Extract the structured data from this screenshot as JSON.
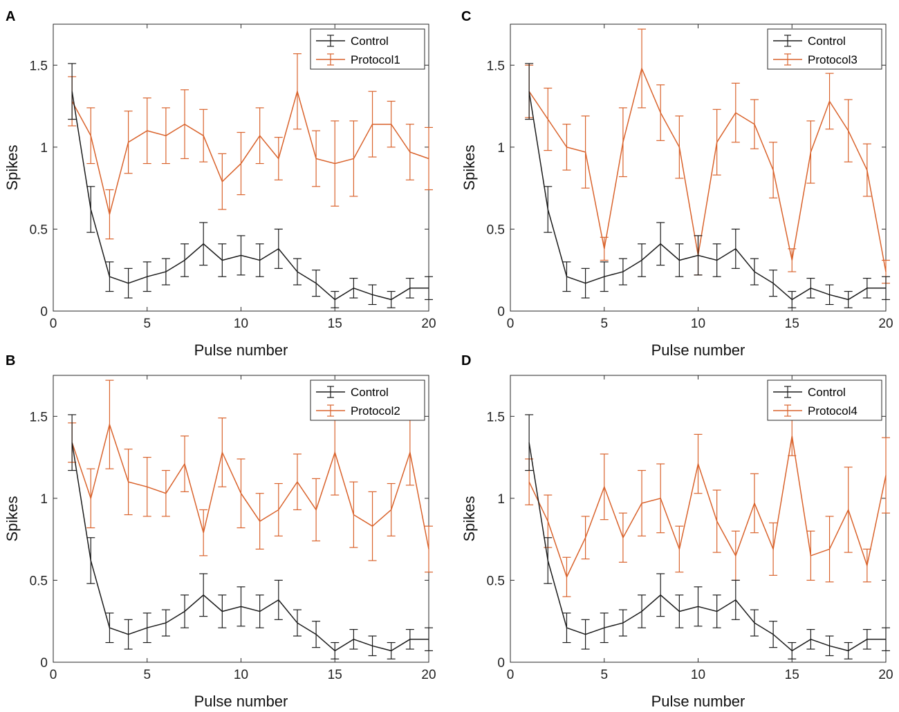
{
  "colors": {
    "control": "#1a1a1a",
    "protocol": "#d9622b"
  },
  "chart_data": [
    {
      "panel": "A",
      "type": "line",
      "xlabel": "Pulse number",
      "ylabel": "Spikes",
      "xlim": [
        0,
        20
      ],
      "ylim": [
        0,
        1.75
      ],
      "xticks": [
        0,
        5,
        10,
        15,
        20
      ],
      "yticks": [
        0,
        0.5,
        1,
        1.5
      ],
      "ytick_labels": [
        "0",
        "0.5",
        "1",
        "1.5"
      ],
      "legend": "top-right",
      "x": [
        1,
        2,
        3,
        4,
        5,
        6,
        7,
        8,
        9,
        10,
        11,
        12,
        13,
        14,
        15,
        16,
        17,
        18,
        19,
        20
      ],
      "series": [
        {
          "name": "Control",
          "values": [
            1.34,
            0.62,
            0.21,
            0.17,
            0.21,
            0.24,
            0.31,
            0.41,
            0.31,
            0.34,
            0.31,
            0.38,
            0.24,
            0.17,
            0.07,
            0.14,
            0.1,
            0.07,
            0.14,
            0.14
          ],
          "errors": [
            0.17,
            0.14,
            0.09,
            0.09,
            0.09,
            0.08,
            0.1,
            0.13,
            0.1,
            0.12,
            0.1,
            0.12,
            0.08,
            0.08,
            0.05,
            0.06,
            0.06,
            0.05,
            0.06,
            0.07
          ]
        },
        {
          "name": "Protocol1",
          "values": [
            1.28,
            1.07,
            0.59,
            1.03,
            1.1,
            1.07,
            1.14,
            1.07,
            0.79,
            0.9,
            1.07,
            0.93,
            1.34,
            0.93,
            0.9,
            0.93,
            1.14,
            1.14,
            0.97,
            0.93
          ],
          "errors": [
            0.15,
            0.17,
            0.15,
            0.19,
            0.2,
            0.17,
            0.21,
            0.16,
            0.17,
            0.19,
            0.17,
            0.13,
            0.23,
            0.17,
            0.26,
            0.23,
            0.2,
            0.14,
            0.17,
            0.19
          ]
        }
      ]
    },
    {
      "panel": "B",
      "type": "line",
      "xlabel": "Pulse number",
      "ylabel": "Spikes",
      "xlim": [
        0,
        20
      ],
      "ylim": [
        0,
        1.75
      ],
      "xticks": [
        0,
        5,
        10,
        15,
        20
      ],
      "yticks": [
        0,
        0.5,
        1,
        1.5
      ],
      "ytick_labels": [
        "0",
        "0.5",
        "1",
        "1.5"
      ],
      "legend": "top-right",
      "x": [
        1,
        2,
        3,
        4,
        5,
        6,
        7,
        8,
        9,
        10,
        11,
        12,
        13,
        14,
        15,
        16,
        17,
        18,
        19,
        20
      ],
      "series": [
        {
          "name": "Control",
          "values": [
            1.34,
            0.62,
            0.21,
            0.17,
            0.21,
            0.24,
            0.31,
            0.41,
            0.31,
            0.34,
            0.31,
            0.38,
            0.24,
            0.17,
            0.07,
            0.14,
            0.1,
            0.07,
            0.14,
            0.14
          ],
          "errors": [
            0.17,
            0.14,
            0.09,
            0.09,
            0.09,
            0.08,
            0.1,
            0.13,
            0.1,
            0.12,
            0.1,
            0.12,
            0.08,
            0.08,
            0.05,
            0.06,
            0.06,
            0.05,
            0.06,
            0.07
          ]
        },
        {
          "name": "Protocol2",
          "values": [
            1.34,
            1.0,
            1.45,
            1.1,
            1.07,
            1.03,
            1.21,
            0.79,
            1.28,
            1.03,
            0.86,
            0.93,
            1.1,
            0.93,
            1.28,
            0.9,
            0.83,
            0.93,
            1.28,
            0.69
          ],
          "errors": [
            0.12,
            0.18,
            0.27,
            0.2,
            0.18,
            0.14,
            0.17,
            0.14,
            0.21,
            0.21,
            0.17,
            0.16,
            0.17,
            0.19,
            0.26,
            0.2,
            0.21,
            0.16,
            0.2,
            0.14
          ]
        }
      ]
    },
    {
      "panel": "C",
      "type": "line",
      "xlabel": "Pulse number",
      "ylabel": "Spikes",
      "xlim": [
        0,
        20
      ],
      "ylim": [
        0,
        1.75
      ],
      "xticks": [
        0,
        5,
        10,
        15,
        20
      ],
      "yticks": [
        0,
        0.5,
        1,
        1.5
      ],
      "ytick_labels": [
        "0",
        "0.5",
        "1",
        "1.5"
      ],
      "legend": "top-right",
      "x": [
        1,
        2,
        3,
        4,
        5,
        6,
        7,
        8,
        9,
        10,
        11,
        12,
        13,
        14,
        15,
        16,
        17,
        18,
        19,
        20
      ],
      "series": [
        {
          "name": "Control",
          "values": [
            1.34,
            0.62,
            0.21,
            0.17,
            0.21,
            0.24,
            0.31,
            0.41,
            0.31,
            0.34,
            0.31,
            0.38,
            0.24,
            0.17,
            0.07,
            0.14,
            0.1,
            0.07,
            0.14,
            0.14
          ],
          "errors": [
            0.17,
            0.14,
            0.09,
            0.09,
            0.09,
            0.08,
            0.1,
            0.13,
            0.1,
            0.12,
            0.1,
            0.12,
            0.08,
            0.08,
            0.05,
            0.06,
            0.06,
            0.05,
            0.06,
            0.07
          ]
        },
        {
          "name": "Protocol3",
          "values": [
            1.34,
            1.17,
            1.0,
            0.97,
            0.38,
            1.03,
            1.48,
            1.21,
            1.0,
            0.34,
            1.03,
            1.21,
            1.14,
            0.86,
            0.31,
            0.97,
            1.28,
            1.1,
            0.86,
            0.24
          ],
          "errors": [
            0.16,
            0.19,
            0.14,
            0.22,
            0.07,
            0.21,
            0.24,
            0.17,
            0.19,
            0.12,
            0.2,
            0.18,
            0.15,
            0.17,
            0.07,
            0.19,
            0.17,
            0.19,
            0.16,
            0.07
          ]
        }
      ]
    },
    {
      "panel": "D",
      "type": "line",
      "xlabel": "Pulse number",
      "ylabel": "Spikes",
      "xlim": [
        0,
        20
      ],
      "ylim": [
        0,
        1.75
      ],
      "xticks": [
        0,
        5,
        10,
        15,
        20
      ],
      "yticks": [
        0,
        0.5,
        1,
        1.5
      ],
      "ytick_labels": [
        "0",
        "0.5",
        "1",
        "1.5"
      ],
      "legend": "top-right",
      "x": [
        1,
        2,
        3,
        4,
        5,
        6,
        7,
        8,
        9,
        10,
        11,
        12,
        13,
        14,
        15,
        16,
        17,
        18,
        19,
        20
      ],
      "series": [
        {
          "name": "Control",
          "values": [
            1.34,
            0.62,
            0.21,
            0.17,
            0.21,
            0.24,
            0.31,
            0.41,
            0.31,
            0.34,
            0.31,
            0.38,
            0.24,
            0.17,
            0.07,
            0.14,
            0.1,
            0.07,
            0.14,
            0.14
          ],
          "errors": [
            0.17,
            0.14,
            0.09,
            0.09,
            0.09,
            0.08,
            0.1,
            0.13,
            0.1,
            0.12,
            0.1,
            0.12,
            0.08,
            0.08,
            0.05,
            0.06,
            0.06,
            0.05,
            0.06,
            0.07
          ]
        },
        {
          "name": "Protocol4",
          "values": [
            1.1,
            0.86,
            0.52,
            0.76,
            1.07,
            0.76,
            0.97,
            1.0,
            0.69,
            1.21,
            0.86,
            0.65,
            0.97,
            0.69,
            1.38,
            0.65,
            0.69,
            0.93,
            0.59,
            1.14
          ],
          "errors": [
            0.14,
            0.16,
            0.12,
            0.13,
            0.2,
            0.15,
            0.2,
            0.21,
            0.14,
            0.18,
            0.19,
            0.15,
            0.18,
            0.16,
            0.12,
            0.15,
            0.2,
            0.26,
            0.1,
            0.23
          ]
        }
      ]
    }
  ]
}
